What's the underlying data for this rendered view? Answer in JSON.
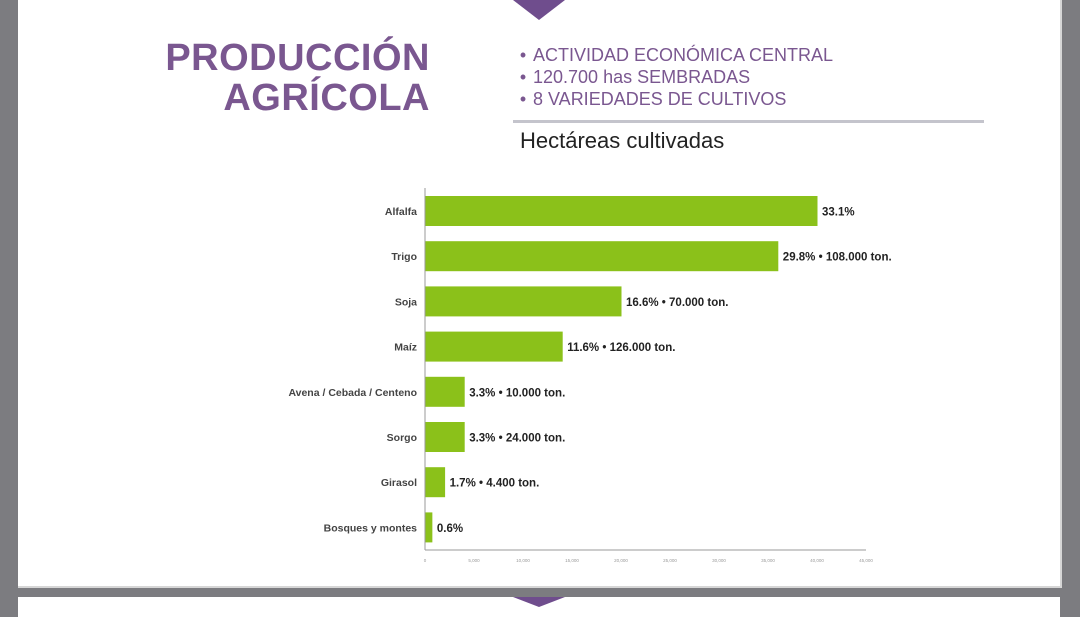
{
  "header": {
    "title_line1": "PRODUCCIÓN",
    "title_line2": "AGRÍCOLA",
    "bullets": [
      "ACTIVIDAD ECONÓMICA CENTRAL",
      "120.700 has SEMBRADAS",
      "8 VARIEDADES DE CULTIVOS"
    ],
    "subtitle": "Hectáreas cultivadas"
  },
  "colors": {
    "accent": "#7a5790",
    "bar": "#8bc11a",
    "background": "#7c7c80"
  },
  "chart_data": {
    "type": "bar",
    "orientation": "horizontal",
    "title": "",
    "xlabel": "",
    "ylabel": "",
    "categories": [
      "Alfalfa",
      "Trigo",
      "Soja",
      "Maíz",
      "Avena / Cebada / Centeno",
      "Sorgo",
      "Girasol",
      "Bosques y montes"
    ],
    "values": [
      40000,
      36000,
      20000,
      14000,
      4000,
      4000,
      2000,
      700
    ],
    "data_labels": [
      "33.1%",
      "29.8% • 108.000 ton.",
      "16.6% • 70.000 ton.",
      "11.6% • 126.000 ton.",
      "3.3% • 10.000 ton.",
      "3.3% • 24.000 ton.",
      "1.7% • 4.400 ton.",
      "0.6%"
    ],
    "xlim": [
      0,
      45000
    ],
    "x_ticks": [
      0,
      5000,
      10000,
      15000,
      20000,
      25000,
      30000,
      35000,
      40000,
      45000
    ],
    "x_tick_labels": [
      "0",
      "5,000",
      "10,000",
      "15,000",
      "20,000",
      "25,000",
      "30,000",
      "35,000",
      "40,000",
      "45,000"
    ],
    "grid": false
  }
}
